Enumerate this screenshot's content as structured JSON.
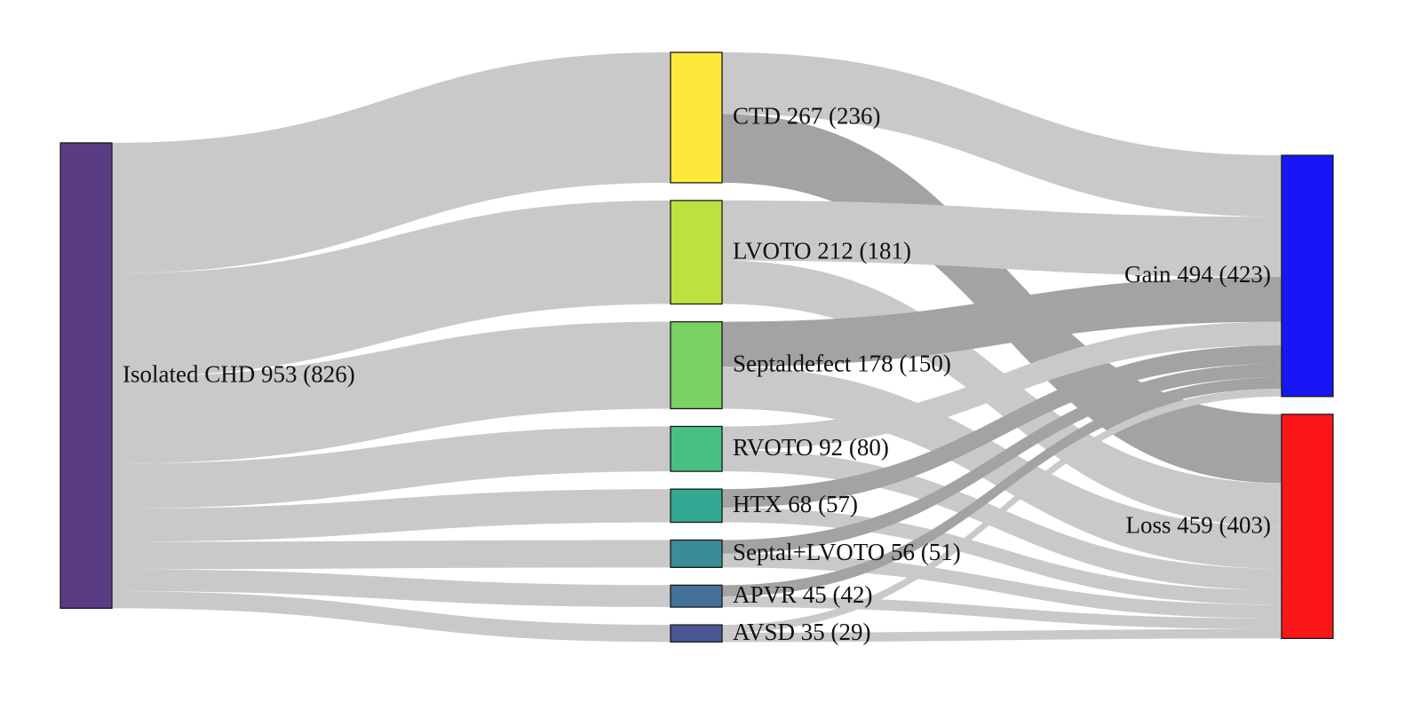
{
  "sankey": {
    "columns": [
      [
        {
          "id": "iso",
          "label": "Isolated CHD 953 (826)",
          "value": 953,
          "color": "#5a3c85"
        }
      ],
      [
        {
          "id": "ctd",
          "label": "CTD 267 (236)",
          "value": 267,
          "color": "#fde93a"
        },
        {
          "id": "lvoto",
          "label": "LVOTO 212 (181)",
          "value": 212,
          "color": "#bbe23f"
        },
        {
          "id": "septal",
          "label": "Septaldefect 178 (150)",
          "value": 178,
          "color": "#7ad164"
        },
        {
          "id": "rvoto",
          "label": "RVOTO 92 (80)",
          "value": 92,
          "color": "#48c083"
        },
        {
          "id": "htx",
          "label": "HTX 68 (57)",
          "value": 68,
          "color": "#32a792"
        },
        {
          "id": "seplv",
          "label": "Septal+LVOTO 56 (51)",
          "value": 56,
          "color": "#3a8c98"
        },
        {
          "id": "apvr",
          "label": "APVR 45 (42)",
          "value": 45,
          "color": "#43719a"
        },
        {
          "id": "avsd",
          "label": "AVSD 35 (29)",
          "value": 35,
          "color": "#4a5792"
        }
      ],
      [
        {
          "id": "gain",
          "label": "Gain 494 (423)",
          "value": 494,
          "color": "#1616f6"
        },
        {
          "id": "loss",
          "label": "Loss 459 (403)",
          "value": 459,
          "color": "#fa1616"
        }
      ]
    ],
    "links": [
      {
        "source": "iso",
        "target": "ctd",
        "value": 267
      },
      {
        "source": "iso",
        "target": "lvoto",
        "value": 212
      },
      {
        "source": "iso",
        "target": "septal",
        "value": 178
      },
      {
        "source": "iso",
        "target": "rvoto",
        "value": 92
      },
      {
        "source": "iso",
        "target": "htx",
        "value": 68
      },
      {
        "source": "iso",
        "target": "seplv",
        "value": 56
      },
      {
        "source": "iso",
        "target": "apvr",
        "value": 45
      },
      {
        "source": "iso",
        "target": "avsd",
        "value": 35
      },
      {
        "source": "ctd",
        "target": "gain",
        "value": 126
      },
      {
        "source": "ctd",
        "target": "loss",
        "value": 141
      },
      {
        "source": "lvoto",
        "target": "gain",
        "value": 123
      },
      {
        "source": "lvoto",
        "target": "loss",
        "value": 89
      },
      {
        "source": "septal",
        "target": "gain",
        "value": 92
      },
      {
        "source": "septal",
        "target": "loss",
        "value": 86
      },
      {
        "source": "rvoto",
        "target": "gain",
        "value": 48
      },
      {
        "source": "rvoto",
        "target": "loss",
        "value": 44
      },
      {
        "source": "htx",
        "target": "gain",
        "value": 38
      },
      {
        "source": "htx",
        "target": "loss",
        "value": 30
      },
      {
        "source": "seplv",
        "target": "gain",
        "value": 28
      },
      {
        "source": "seplv",
        "target": "loss",
        "value": 28
      },
      {
        "source": "apvr",
        "target": "gain",
        "value": 23
      },
      {
        "source": "apvr",
        "target": "loss",
        "value": 22
      },
      {
        "source": "avsd",
        "target": "gain",
        "value": 16
      },
      {
        "source": "avsd",
        "target": "loss",
        "value": 19
      }
    ],
    "link_color": "#c9c9c9",
    "link_highlight_color": "#a3a3a3",
    "highlighted_links": [
      "ctd->loss",
      "septal->gain",
      "htx->gain",
      "seplv->gain",
      "apvr->gain"
    ]
  }
}
